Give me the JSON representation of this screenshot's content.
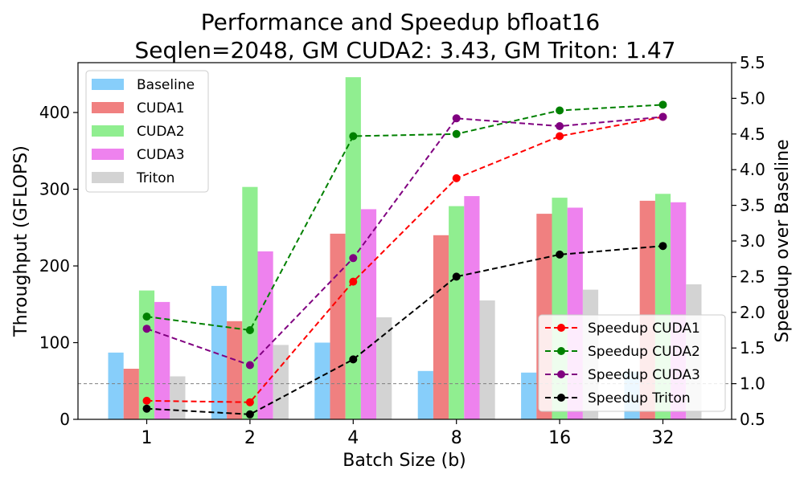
{
  "chart_data": {
    "type": "bar",
    "title_line1": "Performance and Speedup bfloat16",
    "title_line2": "Seqlen=2048, GM CUDA2: 3.43, GM Triton: 1.47",
    "xlabel": "Batch Size (b)",
    "ylabel": "Throughput (GFLOPS)",
    "y2label": "Speedup over Baseline",
    "categories": [
      "1",
      "2",
      "4",
      "8",
      "16",
      "32"
    ],
    "ylim": [
      0,
      465
    ],
    "yticks": [
      "0",
      "100",
      "200",
      "300",
      "400"
    ],
    "y2lim": [
      0.5,
      5.5
    ],
    "y2ticks": [
      "0.5",
      "1.0",
      "1.5",
      "2.0",
      "2.5",
      "3.0",
      "3.5",
      "4.0",
      "4.5",
      "5.0",
      "5.5"
    ],
    "reference_line_y2": 1.0,
    "bar_legend_position": "top-left",
    "line_legend_position": "bottom-right",
    "series": [
      {
        "name": "Baseline",
        "color": "#87cefa",
        "values": [
          87,
          174,
          100,
          63,
          61,
          62
        ]
      },
      {
        "name": "CUDA1",
        "color": "#f08080",
        "values": [
          66,
          128,
          242,
          240,
          268,
          285
        ]
      },
      {
        "name": "CUDA2",
        "color": "#90ee90",
        "values": [
          168,
          303,
          446,
          278,
          289,
          294
        ]
      },
      {
        "name": "CUDA3",
        "color": "#ee82ee",
        "values": [
          153,
          219,
          274,
          291,
          276,
          283
        ]
      },
      {
        "name": "Triton",
        "color": "#d3d3d3",
        "values": [
          56,
          97,
          133,
          155,
          169,
          176
        ]
      }
    ],
    "line_series": [
      {
        "name": "Speedup CUDA1",
        "color": "#ff0000",
        "values": [
          0.76,
          0.74,
          2.43,
          3.88,
          4.47,
          4.74
        ]
      },
      {
        "name": "Speedup CUDA2",
        "color": "#008000",
        "values": [
          1.94,
          1.75,
          4.47,
          4.5,
          4.83,
          4.91
        ]
      },
      {
        "name": "Speedup CUDA3",
        "color": "#800080",
        "values": [
          1.77,
          1.26,
          2.76,
          4.72,
          4.61,
          4.74
        ]
      },
      {
        "name": "Speedup Triton",
        "color": "#000000",
        "values": [
          0.65,
          0.57,
          1.34,
          2.5,
          2.81,
          2.93
        ]
      }
    ]
  }
}
